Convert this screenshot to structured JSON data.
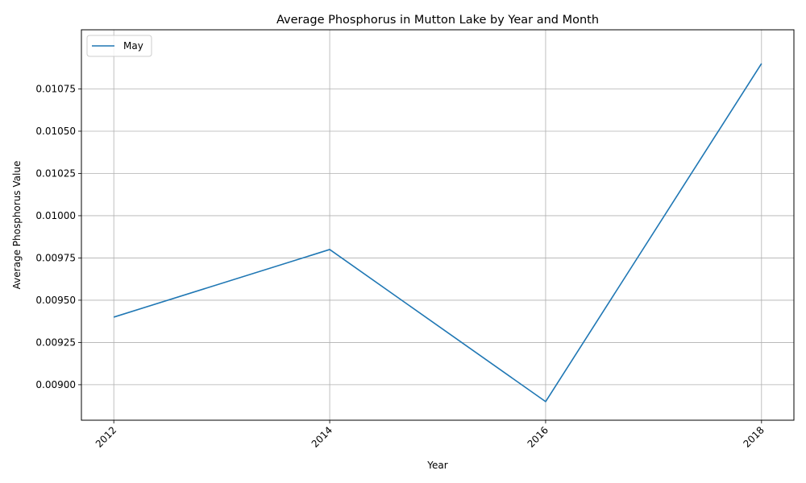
{
  "chart_data": {
    "type": "line",
    "title": "Average Phosphorus in Mutton Lake by Year and Month",
    "xlabel": "Year",
    "ylabel": "Average Phosphorus Value",
    "x": [
      2012,
      2014,
      2016,
      2018
    ],
    "series": [
      {
        "name": "May",
        "color": "#1f77b4",
        "values": [
          0.0094,
          0.0098,
          0.0089,
          0.0109
        ]
      }
    ],
    "xticks": [
      "2012",
      "2014",
      "2016",
      "2018"
    ],
    "yticks": [
      "0.00900",
      "0.00925",
      "0.00950",
      "0.00975",
      "0.01000",
      "0.01025",
      "0.01050",
      "0.01075"
    ],
    "xlim": [
      2011.7,
      2018.3
    ],
    "ylim": [
      0.00879,
      0.0111
    ],
    "grid": true,
    "legend_position": "upper left"
  }
}
